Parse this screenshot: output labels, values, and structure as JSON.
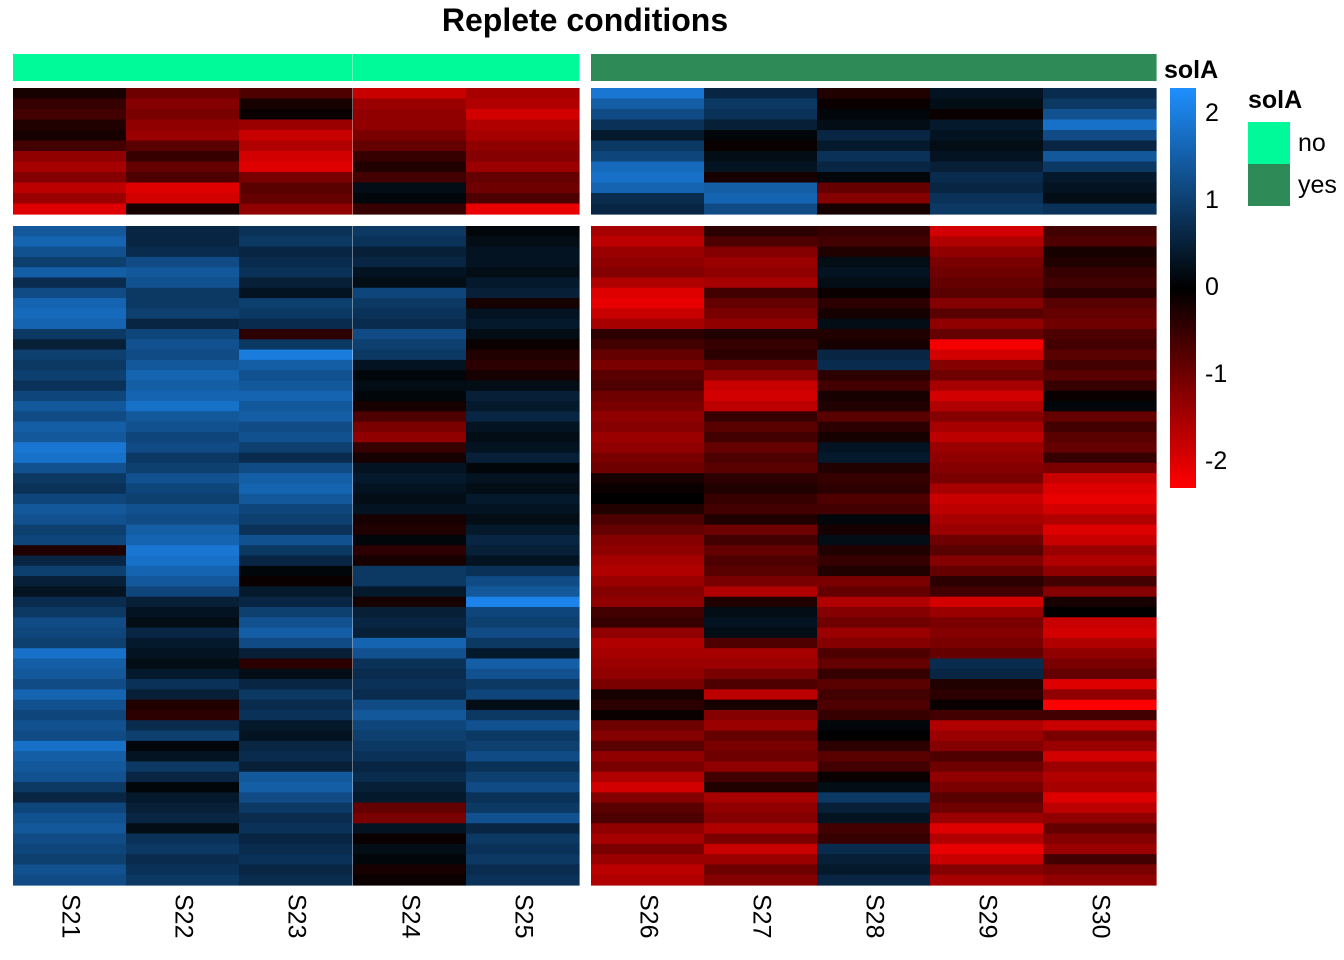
{
  "chart_data": {
    "type": "heatmap",
    "title": "Replete conditions",
    "columns": [
      "S21",
      "S22",
      "S23",
      "S24",
      "S25",
      "S26",
      "S27",
      "S28",
      "S29",
      "S30"
    ],
    "column_annotation": {
      "name": "solA",
      "values": [
        "no",
        "no",
        "no",
        "no",
        "no",
        "yes",
        "yes",
        "yes",
        "yes",
        "yes"
      ],
      "legend": [
        {
          "label": "no",
          "color": "#00FA9A"
        },
        {
          "label": "yes",
          "color": "#2E8B57"
        }
      ]
    },
    "color_scale": {
      "low": "#FF0000",
      "mid": "#000000",
      "high": "#1E90FF",
      "min": -2.3,
      "max": 2.3,
      "ticks": [
        2,
        1,
        0,
        -1,
        -2
      ]
    },
    "row_clusters": [
      {
        "id": "top",
        "rows": 12,
        "values": [
          [
            -0.2,
            -1.0,
            -0.7,
            -1.8,
            -1.5,
            1.9,
            0.6,
            -0.3,
            0.3,
            0.7
          ],
          [
            -0.5,
            -1.2,
            -0.2,
            -1.4,
            -1.6,
            1.5,
            0.9,
            -0.1,
            0.2,
            0.9
          ],
          [
            -0.6,
            -1.1,
            -0.1,
            -1.3,
            -1.9,
            1.2,
            0.8,
            0.1,
            -0.1,
            1.3
          ],
          [
            -0.3,
            -1.3,
            -1.4,
            -1.3,
            -1.6,
            0.8,
            0.5,
            0.2,
            0.4,
            1.8
          ],
          [
            -0.2,
            -1.4,
            -1.8,
            -1.1,
            -1.5,
            0.4,
            0.1,
            0.6,
            0.3,
            1.2
          ],
          [
            -0.6,
            -0.8,
            -1.6,
            -0.9,
            -1.3,
            0.9,
            -0.1,
            0.4,
            0.2,
            0.6
          ],
          [
            -1.3,
            -0.5,
            -1.9,
            -0.5,
            -1.2,
            1.1,
            0.2,
            0.8,
            0.3,
            1.4
          ],
          [
            -1.5,
            -0.9,
            -2.0,
            -0.3,
            -1.4,
            1.7,
            0.3,
            0.6,
            0.5,
            0.9
          ],
          [
            -1.2,
            -0.7,
            -1.1,
            -0.6,
            -0.9,
            1.8,
            -0.2,
            0.1,
            0.7,
            0.4
          ],
          [
            -1.7,
            -2.0,
            -0.8,
            0.2,
            -1.0,
            1.6,
            1.5,
            -0.9,
            0.6,
            0.3
          ],
          [
            -1.4,
            -1.9,
            -0.9,
            0.1,
            -0.7,
            0.7,
            1.6,
            -1.2,
            0.8,
            0.2
          ],
          [
            -2.0,
            -0.2,
            -1.3,
            -0.5,
            -2.1,
            0.6,
            1.2,
            -0.2,
            0.9,
            0.8
          ]
        ]
      },
      {
        "id": "bottom",
        "rows": 64,
        "values": [
          [
            1.4,
            0.6,
            0.8,
            0.9,
            0.1,
            -1.5,
            -0.4,
            -0.5,
            -1.9,
            -0.6
          ],
          [
            1.6,
            0.6,
            0.9,
            0.8,
            0.2,
            -1.7,
            -0.7,
            -0.6,
            -1.6,
            -0.7
          ],
          [
            1.3,
            0.7,
            0.6,
            0.5,
            0.3,
            -1.4,
            -1.2,
            -0.3,
            -1.3,
            -0.2
          ],
          [
            1.0,
            1.2,
            0.7,
            0.6,
            0.3,
            -1.3,
            -1.4,
            0.2,
            -1.1,
            -0.3
          ],
          [
            1.5,
            1.4,
            0.8,
            0.3,
            0.2,
            -1.2,
            -1.3,
            0.3,
            -1.0,
            -0.5
          ],
          [
            0.7,
            1.3,
            0.5,
            0.2,
            0.4,
            -1.6,
            -1.5,
            0.2,
            -0.9,
            -0.6
          ],
          [
            1.2,
            0.9,
            0.3,
            1.1,
            0.5,
            -2.0,
            -0.6,
            -0.1,
            -0.8,
            -0.4
          ],
          [
            1.6,
            0.9,
            1.0,
            0.9,
            -0.2,
            -2.1,
            -0.9,
            -0.4,
            -1.2,
            -0.8
          ],
          [
            1.7,
            1.0,
            0.9,
            0.8,
            0.3,
            -1.8,
            -1.1,
            -0.2,
            -0.8,
            -0.9
          ],
          [
            1.6,
            0.6,
            0.7,
            0.7,
            0.4,
            -1.5,
            -1.3,
            0.2,
            -1.3,
            -1.0
          ],
          [
            0.9,
            1.1,
            -0.4,
            1.2,
            0.2,
            -0.4,
            -0.3,
            -0.3,
            -0.9,
            -0.7
          ],
          [
            0.5,
            1.3,
            0.9,
            1.0,
            -0.1,
            -0.6,
            -0.5,
            -0.2,
            -2.2,
            -0.6
          ],
          [
            1.0,
            1.2,
            2.0,
            0.9,
            -0.3,
            -0.9,
            -0.4,
            0.6,
            -1.9,
            -0.8
          ],
          [
            0.9,
            1.4,
            1.5,
            0.3,
            -0.4,
            -1.1,
            -0.9,
            0.7,
            -1.2,
            -0.6
          ],
          [
            1.0,
            1.6,
            1.3,
            0.1,
            -0.2,
            -0.8,
            -1.3,
            -0.4,
            -1.0,
            -0.8
          ],
          [
            0.8,
            1.5,
            1.4,
            0.2,
            0.2,
            -0.7,
            -1.8,
            -0.6,
            -1.5,
            -0.5
          ],
          [
            1.1,
            1.6,
            1.6,
            0.1,
            0.5,
            -1.0,
            -1.9,
            -0.2,
            -1.9,
            -0.1
          ],
          [
            1.4,
            1.8,
            1.4,
            -0.2,
            0.4,
            -1.1,
            -1.7,
            -0.3,
            -1.6,
            0.1
          ],
          [
            1.2,
            1.4,
            1.5,
            -0.7,
            0.6,
            -1.3,
            -0.5,
            -0.8,
            -1.2,
            -0.9
          ],
          [
            1.5,
            1.3,
            1.2,
            -1.1,
            0.3,
            -1.2,
            -0.8,
            -0.4,
            -1.5,
            -0.6
          ],
          [
            1.4,
            1.1,
            1.3,
            -1.3,
            0.2,
            -1.4,
            -0.6,
            -0.2,
            -1.7,
            -0.8
          ],
          [
            1.9,
            1.2,
            1.0,
            -0.5,
            0.3,
            -1.3,
            -0.9,
            0.3,
            -1.4,
            -0.9
          ],
          [
            1.8,
            0.9,
            0.7,
            -0.2,
            0.5,
            -1.1,
            -0.7,
            0.4,
            -1.3,
            -0.5
          ],
          [
            1.3,
            1.0,
            1.2,
            0.3,
            0.1,
            -1.0,
            -0.8,
            -0.3,
            -1.2,
            -1.1
          ],
          [
            0.9,
            1.3,
            1.5,
            0.4,
            0.3,
            -0.2,
            -0.4,
            -0.5,
            -1.1,
            -1.8
          ],
          [
            0.8,
            1.1,
            1.6,
            0.3,
            0.2,
            -0.1,
            -0.3,
            -0.4,
            -1.5,
            -2.0
          ],
          [
            1.1,
            1.0,
            1.4,
            0.2,
            0.4,
            0.0,
            -0.5,
            -0.7,
            -1.8,
            -2.1
          ],
          [
            1.4,
            1.3,
            1.1,
            0.3,
            0.3,
            -0.3,
            -0.6,
            -0.6,
            -1.7,
            -1.9
          ],
          [
            1.3,
            1.2,
            1.0,
            -0.2,
            0.2,
            -0.7,
            -0.3,
            0.1,
            -1.5,
            -1.6
          ],
          [
            1.0,
            1.5,
            0.8,
            -0.3,
            0.4,
            -0.9,
            -1.0,
            -0.2,
            -1.4,
            -2.0
          ],
          [
            1.1,
            1.6,
            1.3,
            0.1,
            0.6,
            -1.2,
            -0.6,
            0.2,
            -1.0,
            -1.8
          ],
          [
            -0.3,
            1.9,
            0.9,
            -0.4,
            0.5,
            -1.3,
            -0.9,
            -0.3,
            -0.8,
            -1.4
          ],
          [
            0.6,
            1.8,
            0.6,
            -0.2,
            0.3,
            -1.5,
            -0.7,
            -0.5,
            -1.2,
            -1.6
          ],
          [
            1.0,
            1.6,
            0.1,
            0.9,
            0.8,
            -1.6,
            -0.8,
            -0.3,
            -0.9,
            -1.3
          ],
          [
            0.5,
            1.4,
            -0.1,
            0.9,
            1.2,
            -1.4,
            -1.1,
            -1.1,
            -0.4,
            -0.6
          ],
          [
            0.3,
            1.1,
            0.4,
            0.4,
            1.4,
            -1.2,
            -1.6,
            -0.9,
            -0.6,
            -1.2
          ],
          [
            0.7,
            0.5,
            0.6,
            -0.2,
            2.1,
            -1.3,
            -0.3,
            -1.6,
            -1.9,
            -0.2
          ],
          [
            0.9,
            0.3,
            1.0,
            0.5,
            1.1,
            -0.6,
            0.2,
            -1.2,
            -1.4,
            0.0
          ],
          [
            1.2,
            0.2,
            1.3,
            0.6,
            1.0,
            -0.5,
            0.3,
            -1.0,
            -1.1,
            -1.8
          ],
          [
            1.1,
            0.6,
            1.5,
            0.5,
            1.2,
            -1.3,
            0.2,
            -1.4,
            -1.2,
            -1.9
          ],
          [
            1.0,
            0.4,
            1.2,
            1.6,
            0.9,
            -1.6,
            -0.7,
            -1.2,
            -1.1,
            -1.6
          ],
          [
            1.8,
            0.3,
            0.5,
            1.3,
            0.4,
            -1.5,
            -1.5,
            -0.7,
            -0.9,
            -1.3
          ],
          [
            1.5,
            0.2,
            -0.4,
            0.8,
            1.5,
            -1.4,
            -1.4,
            -0.9,
            0.7,
            -1.1
          ],
          [
            1.4,
            0.4,
            0.2,
            0.7,
            1.3,
            -1.3,
            -1.1,
            -0.5,
            0.6,
            -0.9
          ],
          [
            1.2,
            0.8,
            0.6,
            0.8,
            0.9,
            -1.1,
            -0.7,
            -0.8,
            -0.3,
            -2.0
          ],
          [
            1.6,
            0.5,
            0.9,
            0.7,
            1.1,
            -0.2,
            -1.7,
            -0.6,
            -0.4,
            -1.3
          ],
          [
            1.3,
            -0.3,
            0.7,
            1.2,
            0.2,
            -0.4,
            -0.2,
            -0.7,
            -0.1,
            -2.3
          ],
          [
            1.1,
            -0.4,
            0.8,
            1.4,
            0.9,
            -0.1,
            -1.2,
            -0.5,
            -0.6,
            -0.6
          ],
          [
            1.3,
            0.7,
            0.4,
            1.1,
            1.3,
            -1.0,
            -1.4,
            0.1,
            -1.6,
            -1.8
          ],
          [
            1.2,
            1.0,
            0.3,
            1.0,
            0.9,
            -1.2,
            -0.9,
            0.0,
            -1.4,
            -1.1
          ],
          [
            1.8,
            0.1,
            0.6,
            0.9,
            1.0,
            -0.8,
            -1.1,
            -0.4,
            -1.2,
            -1.4
          ],
          [
            1.5,
            0.3,
            0.7,
            0.8,
            1.2,
            -1.3,
            -1.0,
            -0.8,
            -0.7,
            -1.9
          ],
          [
            1.4,
            0.9,
            0.5,
            0.6,
            0.8,
            -1.1,
            -1.3,
            -0.6,
            -1.0,
            -1.4
          ],
          [
            1.3,
            0.6,
            1.4,
            0.7,
            1.0,
            -1.6,
            -0.6,
            -0.1,
            -1.3,
            -1.6
          ],
          [
            0.9,
            0.1,
            1.5,
            0.5,
            1.2,
            -1.9,
            -0.3,
            0.2,
            -1.1,
            -1.5
          ],
          [
            0.6,
            0.4,
            1.2,
            0.4,
            0.8,
            -1.2,
            -1.5,
            0.9,
            -0.8,
            -2.0
          ],
          [
            1.1,
            0.5,
            0.9,
            -0.9,
            0.9,
            -0.8,
            -1.3,
            0.5,
            -1.0,
            -1.7
          ],
          [
            1.3,
            0.6,
            0.7,
            -1.1,
            1.3,
            -0.7,
            -1.2,
            0.3,
            -1.4,
            -1.3
          ],
          [
            1.4,
            0.2,
            0.8,
            0.3,
            0.6,
            -1.3,
            -1.6,
            -0.6,
            -2.0,
            -0.9
          ],
          [
            1.2,
            0.8,
            0.6,
            -0.1,
            0.9,
            -1.5,
            -1.1,
            -0.5,
            -1.6,
            -1.2
          ],
          [
            1.1,
            0.9,
            0.7,
            0.2,
            0.8,
            -1.1,
            -1.8,
            0.7,
            -2.1,
            -1.4
          ],
          [
            1.0,
            0.7,
            0.8,
            0.1,
            0.9,
            -1.4,
            -1.4,
            0.5,
            -1.8,
            -0.6
          ],
          [
            1.3,
            0.8,
            0.6,
            -0.2,
            0.7,
            -1.7,
            -1.0,
            0.4,
            -1.2,
            -1.1
          ],
          [
            1.2,
            0.9,
            0.7,
            -0.1,
            0.8,
            -1.6,
            -1.2,
            0.6,
            -1.5,
            -1.3
          ]
        ]
      }
    ]
  }
}
